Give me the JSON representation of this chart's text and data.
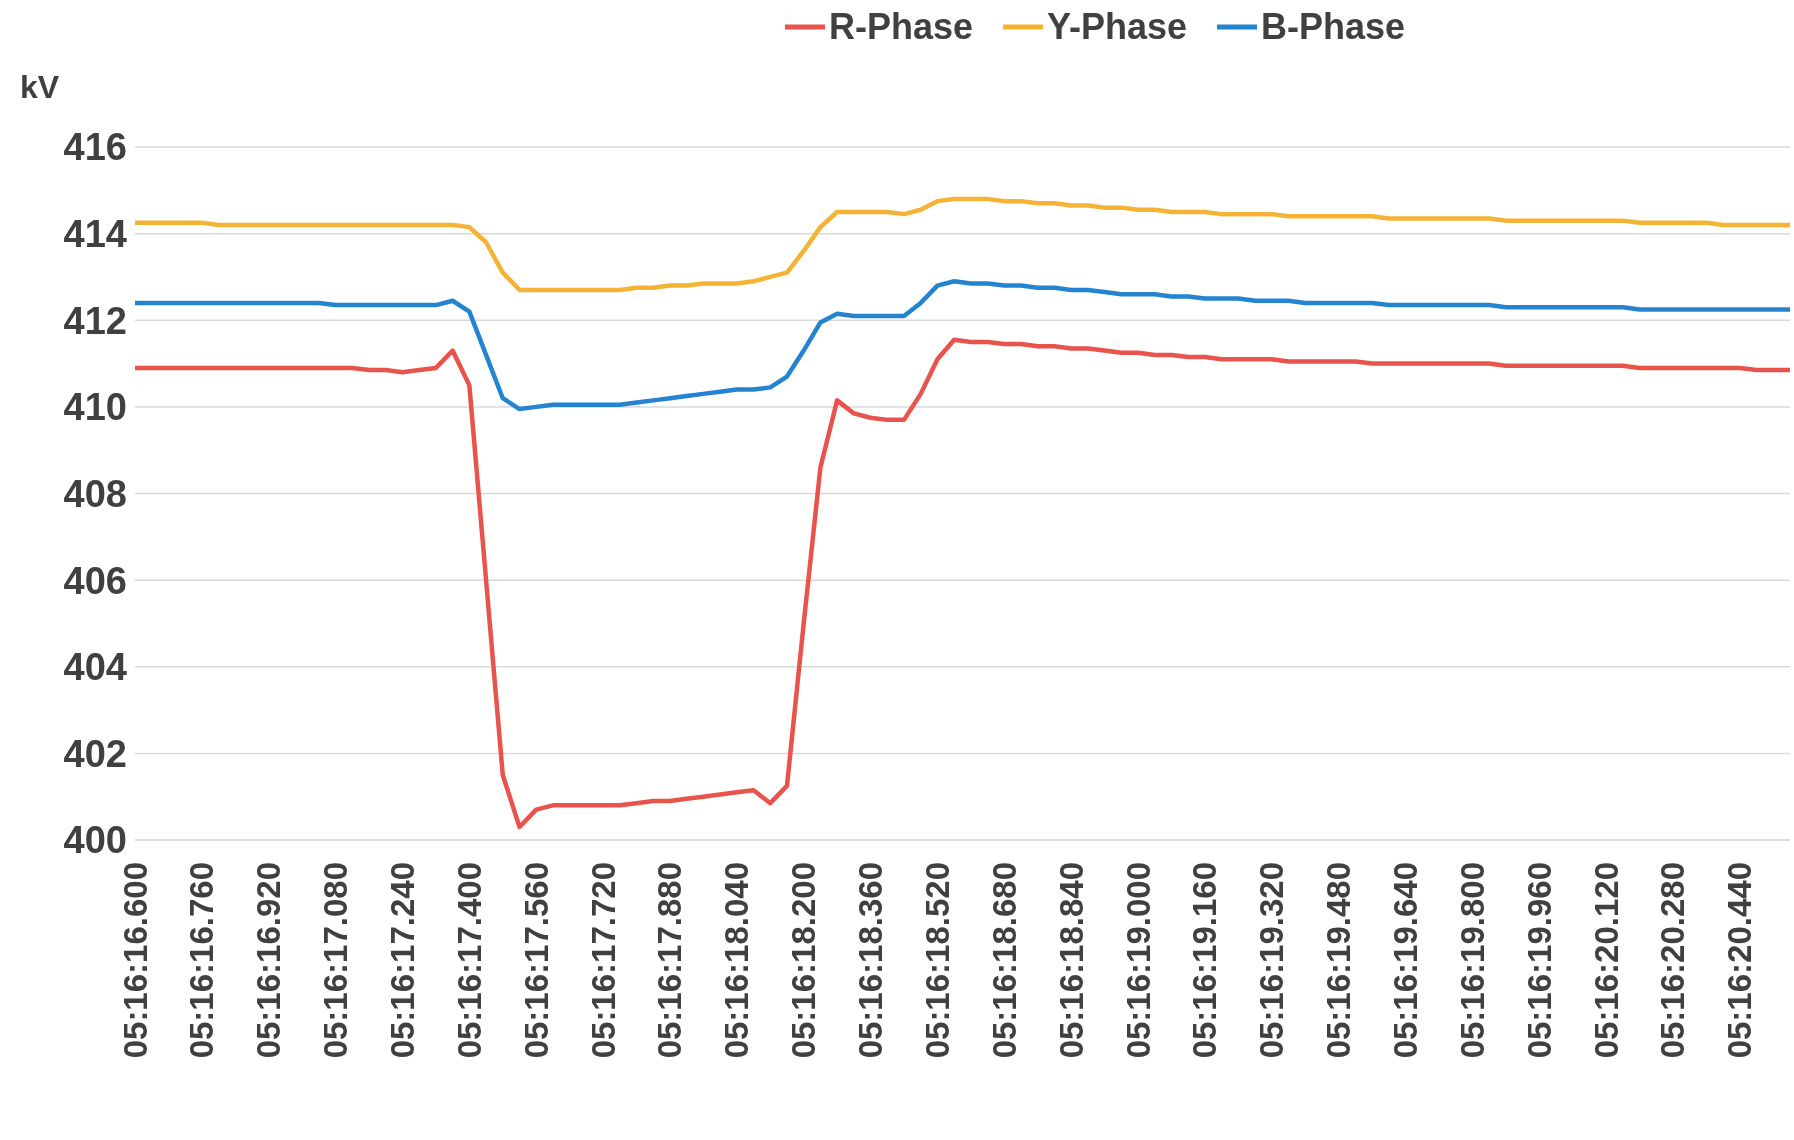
{
  "chart_data": {
    "type": "line",
    "ylabel": "kV",
    "categories": [
      "05:16:16.600",
      null,
      null,
      null,
      "05:16:16.760",
      null,
      null,
      null,
      "05:16:16.920",
      null,
      null,
      null,
      "05:16:17.080",
      null,
      null,
      null,
      "05:16:17.240",
      null,
      null,
      null,
      "05:16:17.400",
      null,
      null,
      null,
      "05:16:17.560",
      null,
      null,
      null,
      "05:16:17.720",
      null,
      null,
      null,
      "05:16:17.880",
      null,
      null,
      null,
      "05:16:18.040",
      null,
      null,
      null,
      "05:16:18.200",
      null,
      null,
      null,
      "05:16:18.360",
      null,
      null,
      null,
      "05:16:18.520",
      null,
      null,
      null,
      "05:16:18.680",
      null,
      null,
      null,
      "05:16:18.840",
      null,
      null,
      null,
      "05:16:19.000",
      null,
      null,
      null,
      "05:16:19.160",
      null,
      null,
      null,
      "05:16:19.320",
      null,
      null,
      null,
      "05:16:19.480",
      null,
      null,
      null,
      "05:16:19.640",
      null,
      null,
      null,
      "05:16:19.800",
      null,
      null,
      null,
      "05:16:19.960",
      null,
      null,
      null,
      "05:16:20.120",
      null,
      null,
      null,
      "05:16:20.280",
      null,
      null,
      null,
      "05:16:20.440",
      null,
      null,
      null
    ],
    "series": [
      {
        "name": "R-Phase",
        "color": "#e8534c",
        "values": [
          410.9,
          410.9,
          410.9,
          410.9,
          410.9,
          410.9,
          410.9,
          410.9,
          410.9,
          410.9,
          410.9,
          410.9,
          410.9,
          410.9,
          410.85,
          410.85,
          410.8,
          410.85,
          410.9,
          411.3,
          410.5,
          406,
          401.5,
          400.3,
          400.7,
          400.8,
          400.8,
          400.8,
          400.8,
          400.8,
          400.85,
          400.9,
          400.9,
          400.95,
          401,
          401.05,
          401.1,
          401.15,
          400.85,
          401.25,
          405,
          408.6,
          410.15,
          409.85,
          409.75,
          409.7,
          409.7,
          410.3,
          411.1,
          411.55,
          411.5,
          411.5,
          411.45,
          411.45,
          411.4,
          411.4,
          411.35,
          411.35,
          411.3,
          411.25,
          411.25,
          411.2,
          411.2,
          411.15,
          411.15,
          411.1,
          411.1,
          411.1,
          411.1,
          411.05,
          411.05,
          411.05,
          411.05,
          411.05,
          411,
          411,
          411,
          411,
          411,
          411,
          411,
          411,
          410.95,
          410.95,
          410.95,
          410.95,
          410.95,
          410.95,
          410.95,
          410.95,
          410.9,
          410.9,
          410.9,
          410.9,
          410.9,
          410.9,
          410.9,
          410.85,
          410.85,
          410.85
        ]
      },
      {
        "name": "Y-Phase",
        "color": "#f5b335",
        "values": [
          414.25,
          414.25,
          414.25,
          414.25,
          414.25,
          414.2,
          414.2,
          414.2,
          414.2,
          414.2,
          414.2,
          414.2,
          414.2,
          414.2,
          414.2,
          414.2,
          414.2,
          414.2,
          414.2,
          414.2,
          414.15,
          413.8,
          413.1,
          412.7,
          412.7,
          412.7,
          412.7,
          412.7,
          412.7,
          412.7,
          412.75,
          412.75,
          412.8,
          412.8,
          412.85,
          412.85,
          412.85,
          412.9,
          413,
          413.1,
          413.6,
          414.15,
          414.5,
          414.5,
          414.5,
          414.5,
          414.45,
          414.55,
          414.75,
          414.8,
          414.8,
          414.8,
          414.75,
          414.75,
          414.7,
          414.7,
          414.65,
          414.65,
          414.6,
          414.6,
          414.55,
          414.55,
          414.5,
          414.5,
          414.5,
          414.45,
          414.45,
          414.45,
          414.45,
          414.4,
          414.4,
          414.4,
          414.4,
          414.4,
          414.4,
          414.35,
          414.35,
          414.35,
          414.35,
          414.35,
          414.35,
          414.35,
          414.3,
          414.3,
          414.3,
          414.3,
          414.3,
          414.3,
          414.3,
          414.3,
          414.25,
          414.25,
          414.25,
          414.25,
          414.25,
          414.2,
          414.2,
          414.2,
          414.2,
          414.2
        ]
      },
      {
        "name": "B-Phase",
        "color": "#2584d0",
        "values": [
          412.4,
          412.4,
          412.4,
          412.4,
          412.4,
          412.4,
          412.4,
          412.4,
          412.4,
          412.4,
          412.4,
          412.4,
          412.35,
          412.35,
          412.35,
          412.35,
          412.35,
          412.35,
          412.35,
          412.45,
          412.2,
          411.2,
          410.2,
          409.95,
          410,
          410.05,
          410.05,
          410.05,
          410.05,
          410.05,
          410.1,
          410.15,
          410.2,
          410.25,
          410.3,
          410.35,
          410.4,
          410.4,
          410.45,
          410.7,
          411.3,
          411.95,
          412.15,
          412.1,
          412.1,
          412.1,
          412.1,
          412.4,
          412.8,
          412.9,
          412.85,
          412.85,
          412.8,
          412.8,
          412.75,
          412.75,
          412.7,
          412.7,
          412.65,
          412.6,
          412.6,
          412.6,
          412.55,
          412.55,
          412.5,
          412.5,
          412.5,
          412.45,
          412.45,
          412.45,
          412.4,
          412.4,
          412.4,
          412.4,
          412.4,
          412.35,
          412.35,
          412.35,
          412.35,
          412.35,
          412.35,
          412.35,
          412.3,
          412.3,
          412.3,
          412.3,
          412.3,
          412.3,
          412.3,
          412.3,
          412.25,
          412.25,
          412.25,
          412.25,
          412.25,
          412.25,
          412.25,
          412.25,
          412.25,
          412.25
        ]
      }
    ],
    "ylim": [
      400,
      416
    ],
    "yticks": [
      400,
      402,
      404,
      406,
      408,
      410,
      412,
      414,
      416
    ],
    "grid": "y",
    "legend": "top",
    "marker": "none",
    "line_style": "solid"
  }
}
